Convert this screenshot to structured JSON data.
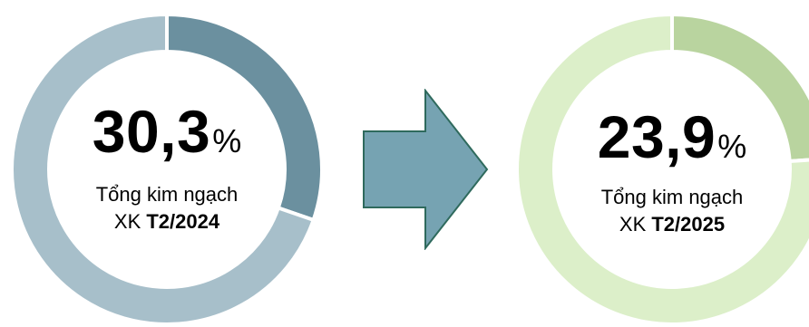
{
  "chart_data": [
    {
      "type": "pie",
      "style": "donut",
      "center_value": "30,3",
      "center_unit": "%",
      "label_line1": "Tổng kim ngạch",
      "label_prefix": "XK ",
      "label_period": "T2/2024",
      "slices": [
        {
          "value": 30.3,
          "color": "#6b909f"
        },
        {
          "value": 69.7,
          "color": "#a7bfca"
        }
      ]
    },
    {
      "type": "pie",
      "style": "donut",
      "center_value": "23,9",
      "center_unit": "%",
      "label_line1": "Tổng kim ngạch",
      "label_prefix": "XK ",
      "label_period": "T2/2025",
      "slices": [
        {
          "value": 23.9,
          "color": "#b9d49f"
        },
        {
          "value": 76.1,
          "color": "#dcefc9"
        }
      ]
    }
  ],
  "colors": {
    "arrow_fill": "#76a3b2",
    "arrow_stroke": "#2f6a5d",
    "separator": "#ffffff"
  },
  "icons": {
    "arrow": "right-arrow-icon"
  }
}
